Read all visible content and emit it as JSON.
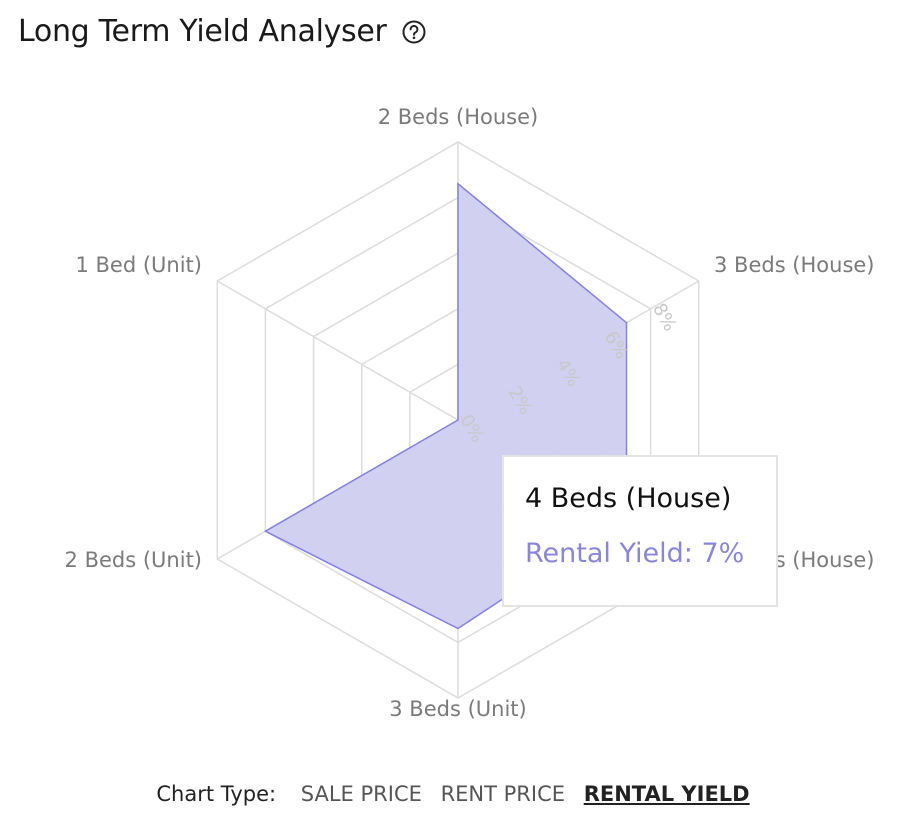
{
  "header": {
    "title": "Long Term Yield Analyser",
    "help_icon": "question-circle-icon"
  },
  "chart_data": {
    "type": "radar",
    "categories": [
      "2 Beds (House)",
      "3 Beds (House)",
      "4 Beds (House)",
      "3 Beds (Unit)",
      "2 Beds (Unit)",
      "1 Bed (Unit)"
    ],
    "series": [
      {
        "values": [
          8.5,
          7,
          7,
          7.5,
          8,
          0
        ]
      }
    ],
    "rlim": [
      0,
      10
    ],
    "ticks": [
      "0%",
      "2%",
      "4%",
      "6%",
      "8%"
    ],
    "tick_values": [
      0,
      2,
      4,
      6,
      8
    ],
    "grid_levels": 5,
    "colors": {
      "fill": "#cfcdf0",
      "stroke": "#8580e0",
      "grid": "#dcdcdc"
    }
  },
  "tooltip": {
    "title": "4 Beds (House)",
    "line": "Rental Yield: 7%",
    "color": "#8a85dc"
  },
  "footer": {
    "label": "Chart Type:",
    "options": [
      "SALE PRICE",
      "RENT PRICE",
      "RENTAL YIELD"
    ],
    "active": "RENTAL YIELD"
  }
}
